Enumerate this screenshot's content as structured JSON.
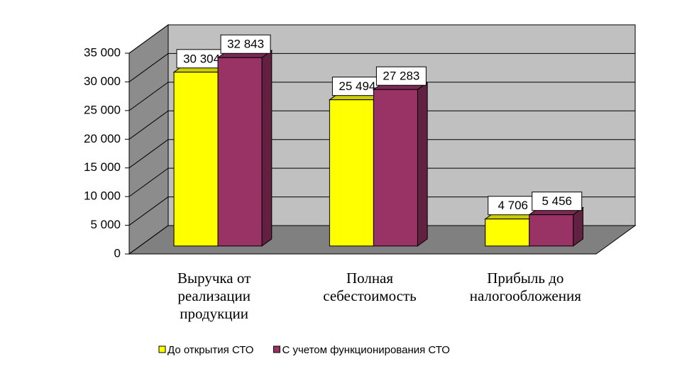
{
  "chart_data": {
    "type": "bar3d",
    "categories": [
      "Выручка от реализации продукции",
      "Полная себестоимость",
      "Прибыль до налогообложения"
    ],
    "series": [
      {
        "name": "До открытия СТО",
        "color": "#ffff00",
        "values": [
          30304,
          25494,
          4706
        ],
        "value_labels": [
          "30 304",
          "25 494",
          "4 706"
        ]
      },
      {
        "name": "С учетом функционирования СТО",
        "color": "#993366",
        "values": [
          32843,
          27283,
          5456
        ],
        "value_labels": [
          "32 843",
          "27 283",
          "5 456"
        ]
      }
    ],
    "ylim": [
      0,
      35000
    ],
    "yticks": [
      0,
      {
        "value": 5000,
        "label": "5 000"
      },
      {
        "value": 10000,
        "label": "10 000"
      },
      {
        "value": 15000,
        "label": "15 000"
      },
      {
        "value": 20000,
        "label": "20 000"
      },
      {
        "value": 25000,
        "label": "25 000"
      },
      {
        "value": 30000,
        "label": "30 000"
      },
      {
        "value": 35000,
        "label": "35 000"
      }
    ],
    "grid": true,
    "legend": "bottom"
  }
}
